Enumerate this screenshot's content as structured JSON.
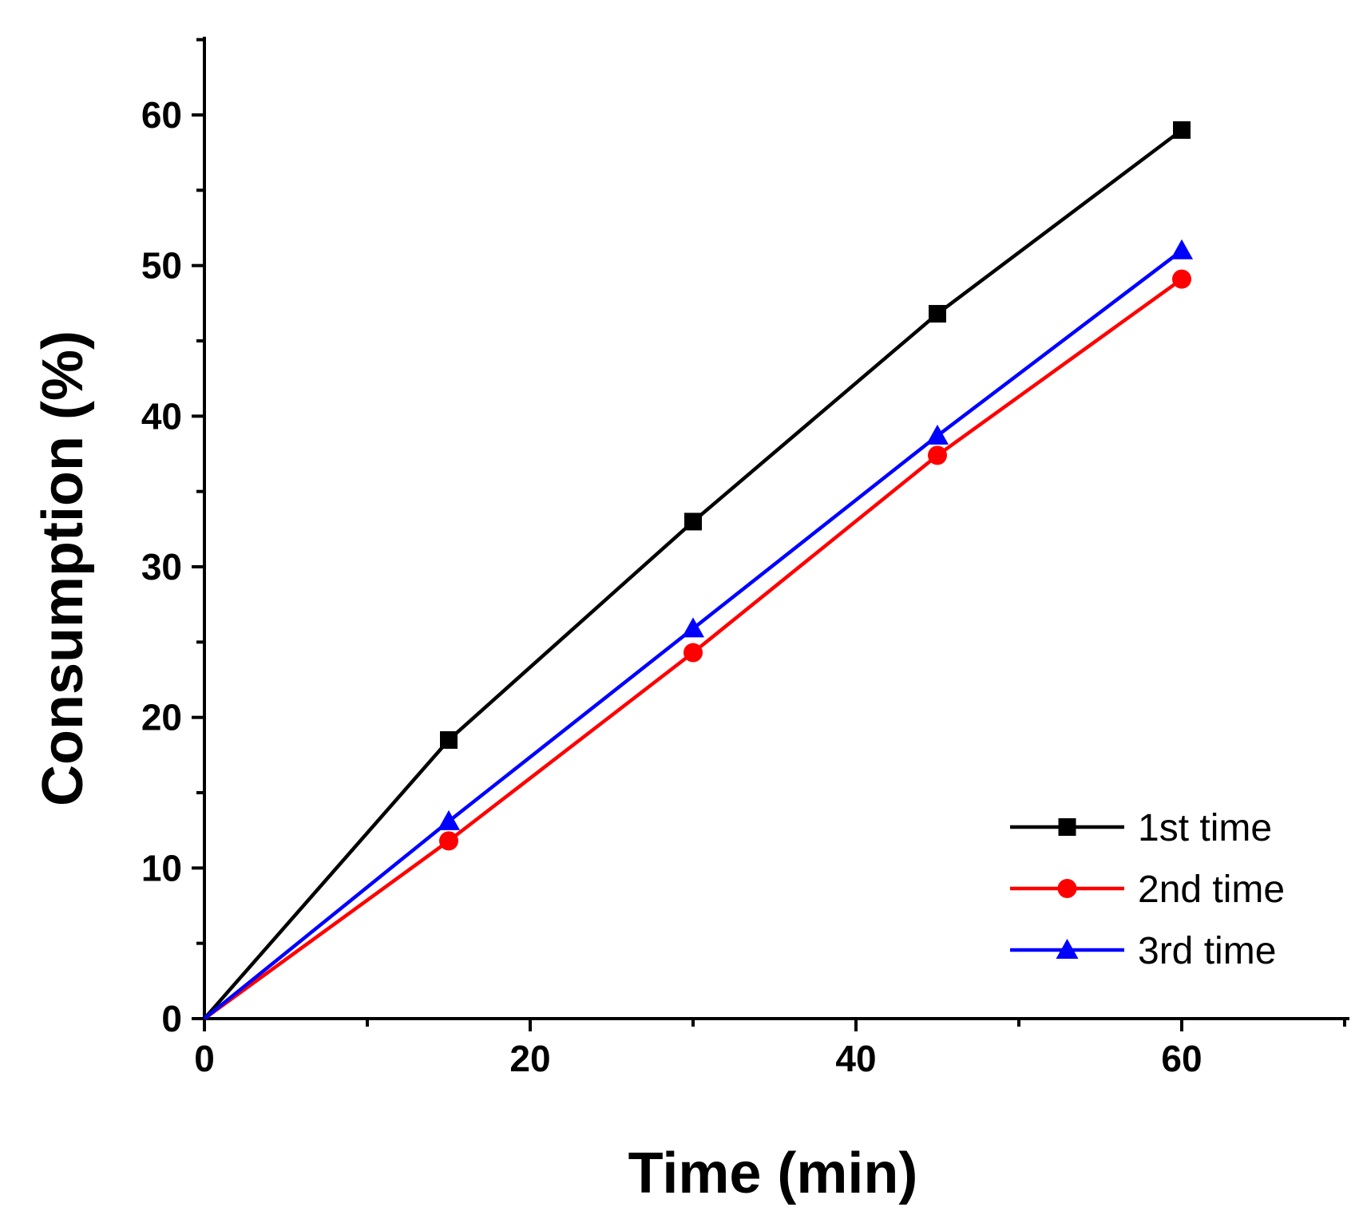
{
  "chart_data": {
    "type": "line",
    "title": "",
    "xlabel": "Time (min)",
    "ylabel": "Consumption (%)",
    "xlim": [
      0,
      70
    ],
    "ylim": [
      0,
      65
    ],
    "x_ticks": [
      0,
      20,
      40,
      60
    ],
    "y_ticks": [
      0,
      10,
      20,
      30,
      40,
      50,
      60
    ],
    "grid": false,
    "legend_position": "bottom-right",
    "x": [
      0,
      15,
      30,
      45,
      60
    ],
    "series": [
      {
        "name": "1st time",
        "values": [
          0,
          18.5,
          33.0,
          46.8,
          59.0
        ],
        "color": "#000000",
        "marker": "square"
      },
      {
        "name": "2nd time",
        "values": [
          0,
          11.8,
          24.3,
          37.4,
          49.1
        ],
        "color": "#ff0000",
        "marker": "circle"
      },
      {
        "name": "3rd time",
        "values": [
          0,
          13.1,
          25.9,
          38.7,
          51.0
        ],
        "color": "#0000ff",
        "marker": "triangle"
      }
    ]
  }
}
